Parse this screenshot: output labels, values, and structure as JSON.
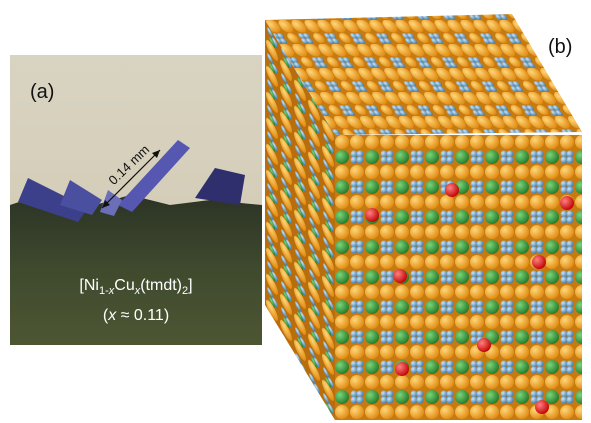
{
  "panel_a": {
    "label": "(a)",
    "scale_label": "0.14 mm",
    "formula": [
      "[Ni",
      "1-",
      "x",
      "Cu",
      "x",
      "(tmdt)",
      "2",
      "]"
    ],
    "doping": [
      "(",
      "x",
      " ≈ 0.11)"
    ]
  },
  "panel_b": {
    "label": "(b)"
  }
}
